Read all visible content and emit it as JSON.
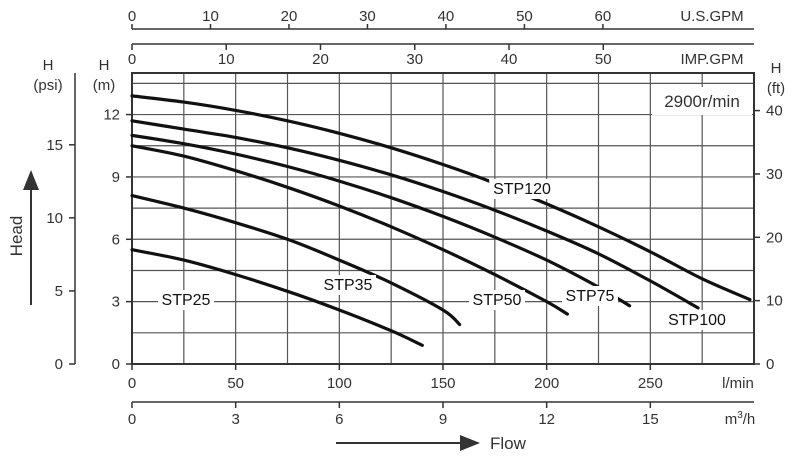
{
  "chart_data": {
    "type": "line",
    "title": "",
    "speed_label": "2900r/min",
    "x_primary": {
      "unit": "l/min",
      "range": [
        0,
        300
      ],
      "ticks": [
        "0",
        "50",
        "100",
        "150",
        "200",
        "250"
      ]
    },
    "x_m3h": {
      "unit": "m³/h",
      "unit_base": "m",
      "unit_sup": "3",
      "unit_tail": "/h",
      "ticks": [
        "0",
        "3",
        "6",
        "9",
        "12",
        "15"
      ]
    },
    "x_usgpm": {
      "unit": "U.S.GPM",
      "ticks": [
        "0",
        "10",
        "20",
        "30",
        "40",
        "50",
        "60"
      ]
    },
    "x_impgpm": {
      "unit": "IMP.GPM",
      "ticks": [
        "0",
        "10",
        "20",
        "30",
        "40",
        "50"
      ]
    },
    "y_m": {
      "unit": "H\n(m)",
      "unit_line1": "H",
      "unit_line2": "(m)",
      "range": [
        0,
        14
      ],
      "ticks": [
        "0",
        "3",
        "6",
        "9",
        "12"
      ]
    },
    "y_psi": {
      "unit_line1": "H",
      "unit_line2": "(psi)",
      "ticks": [
        "0",
        "5",
        "10",
        "15"
      ]
    },
    "y_ft": {
      "unit_line1": "H",
      "unit_line2": "(ft)",
      "ticks": [
        "0",
        "10",
        "20",
        "30",
        "40"
      ]
    },
    "y_axis_title": "Head",
    "x_axis_title": "Flow",
    "grid": true,
    "series": [
      {
        "name": "STP25",
        "x": [
          0,
          25,
          50,
          75,
          100,
          125,
          140
        ],
        "y": [
          5.5,
          5.0,
          4.3,
          3.5,
          2.6,
          1.6,
          0.9
        ]
      },
      {
        "name": "STP35",
        "x": [
          0,
          25,
          50,
          75,
          100,
          125,
          150,
          158
        ],
        "y": [
          8.1,
          7.5,
          6.8,
          6.0,
          5.0,
          3.9,
          2.6,
          1.9
        ]
      },
      {
        "name": "STP50",
        "x": [
          0,
          25,
          50,
          75,
          100,
          125,
          150,
          175,
          200,
          210
        ],
        "y": [
          10.5,
          10.0,
          9.3,
          8.5,
          7.6,
          6.6,
          5.5,
          4.3,
          3.0,
          2.4
        ]
      },
      {
        "name": "STP75",
        "x": [
          0,
          25,
          50,
          75,
          100,
          125,
          150,
          175,
          200,
          225,
          240
        ],
        "y": [
          11.0,
          10.6,
          10.1,
          9.5,
          8.8,
          8.0,
          7.1,
          6.1,
          5.0,
          3.7,
          2.8
        ]
      },
      {
        "name": "STP100",
        "x": [
          0,
          25,
          50,
          75,
          100,
          125,
          150,
          175,
          200,
          225,
          250,
          273
        ],
        "y": [
          11.7,
          11.3,
          10.9,
          10.4,
          9.8,
          9.1,
          8.3,
          7.4,
          6.4,
          5.3,
          4.0,
          2.7
        ]
      },
      {
        "name": "STP120",
        "x": [
          0,
          25,
          50,
          75,
          100,
          125,
          150,
          175,
          200,
          225,
          250,
          275,
          298
        ],
        "y": [
          12.9,
          12.6,
          12.2,
          11.7,
          11.1,
          10.4,
          9.6,
          8.7,
          7.7,
          6.6,
          5.4,
          4.1,
          3.1
        ]
      }
    ]
  }
}
